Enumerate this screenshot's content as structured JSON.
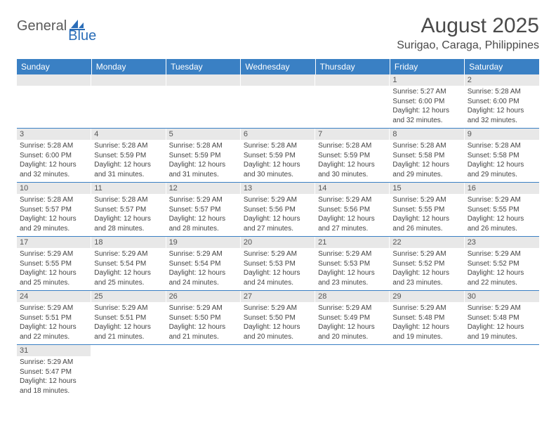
{
  "logo": {
    "word1": "General",
    "word2": "Blue"
  },
  "title": "August 2025",
  "location": "Surigao, Caraga, Philippines",
  "colors": {
    "header_bg": "#3a80c4",
    "header_text": "#ffffff",
    "daynum_bg": "#e8e8e8",
    "border": "#3a80c4",
    "logo_gray": "#5a5a5a",
    "logo_blue": "#2a6db8"
  },
  "weekdays": [
    "Sunday",
    "Monday",
    "Tuesday",
    "Wednesday",
    "Thursday",
    "Friday",
    "Saturday"
  ],
  "weeks": [
    [
      null,
      null,
      null,
      null,
      null,
      {
        "n": "1",
        "sr": "Sunrise: 5:27 AM",
        "ss": "Sunset: 6:00 PM",
        "d1": "Daylight: 12 hours",
        "d2": "and 32 minutes."
      },
      {
        "n": "2",
        "sr": "Sunrise: 5:28 AM",
        "ss": "Sunset: 6:00 PM",
        "d1": "Daylight: 12 hours",
        "d2": "and 32 minutes."
      }
    ],
    [
      {
        "n": "3",
        "sr": "Sunrise: 5:28 AM",
        "ss": "Sunset: 6:00 PM",
        "d1": "Daylight: 12 hours",
        "d2": "and 32 minutes."
      },
      {
        "n": "4",
        "sr": "Sunrise: 5:28 AM",
        "ss": "Sunset: 5:59 PM",
        "d1": "Daylight: 12 hours",
        "d2": "and 31 minutes."
      },
      {
        "n": "5",
        "sr": "Sunrise: 5:28 AM",
        "ss": "Sunset: 5:59 PM",
        "d1": "Daylight: 12 hours",
        "d2": "and 31 minutes."
      },
      {
        "n": "6",
        "sr": "Sunrise: 5:28 AM",
        "ss": "Sunset: 5:59 PM",
        "d1": "Daylight: 12 hours",
        "d2": "and 30 minutes."
      },
      {
        "n": "7",
        "sr": "Sunrise: 5:28 AM",
        "ss": "Sunset: 5:59 PM",
        "d1": "Daylight: 12 hours",
        "d2": "and 30 minutes."
      },
      {
        "n": "8",
        "sr": "Sunrise: 5:28 AM",
        "ss": "Sunset: 5:58 PM",
        "d1": "Daylight: 12 hours",
        "d2": "and 29 minutes."
      },
      {
        "n": "9",
        "sr": "Sunrise: 5:28 AM",
        "ss": "Sunset: 5:58 PM",
        "d1": "Daylight: 12 hours",
        "d2": "and 29 minutes."
      }
    ],
    [
      {
        "n": "10",
        "sr": "Sunrise: 5:28 AM",
        "ss": "Sunset: 5:57 PM",
        "d1": "Daylight: 12 hours",
        "d2": "and 29 minutes."
      },
      {
        "n": "11",
        "sr": "Sunrise: 5:28 AM",
        "ss": "Sunset: 5:57 PM",
        "d1": "Daylight: 12 hours",
        "d2": "and 28 minutes."
      },
      {
        "n": "12",
        "sr": "Sunrise: 5:29 AM",
        "ss": "Sunset: 5:57 PM",
        "d1": "Daylight: 12 hours",
        "d2": "and 28 minutes."
      },
      {
        "n": "13",
        "sr": "Sunrise: 5:29 AM",
        "ss": "Sunset: 5:56 PM",
        "d1": "Daylight: 12 hours",
        "d2": "and 27 minutes."
      },
      {
        "n": "14",
        "sr": "Sunrise: 5:29 AM",
        "ss": "Sunset: 5:56 PM",
        "d1": "Daylight: 12 hours",
        "d2": "and 27 minutes."
      },
      {
        "n": "15",
        "sr": "Sunrise: 5:29 AM",
        "ss": "Sunset: 5:55 PM",
        "d1": "Daylight: 12 hours",
        "d2": "and 26 minutes."
      },
      {
        "n": "16",
        "sr": "Sunrise: 5:29 AM",
        "ss": "Sunset: 5:55 PM",
        "d1": "Daylight: 12 hours",
        "d2": "and 26 minutes."
      }
    ],
    [
      {
        "n": "17",
        "sr": "Sunrise: 5:29 AM",
        "ss": "Sunset: 5:55 PM",
        "d1": "Daylight: 12 hours",
        "d2": "and 25 minutes."
      },
      {
        "n": "18",
        "sr": "Sunrise: 5:29 AM",
        "ss": "Sunset: 5:54 PM",
        "d1": "Daylight: 12 hours",
        "d2": "and 25 minutes."
      },
      {
        "n": "19",
        "sr": "Sunrise: 5:29 AM",
        "ss": "Sunset: 5:54 PM",
        "d1": "Daylight: 12 hours",
        "d2": "and 24 minutes."
      },
      {
        "n": "20",
        "sr": "Sunrise: 5:29 AM",
        "ss": "Sunset: 5:53 PM",
        "d1": "Daylight: 12 hours",
        "d2": "and 24 minutes."
      },
      {
        "n": "21",
        "sr": "Sunrise: 5:29 AM",
        "ss": "Sunset: 5:53 PM",
        "d1": "Daylight: 12 hours",
        "d2": "and 23 minutes."
      },
      {
        "n": "22",
        "sr": "Sunrise: 5:29 AM",
        "ss": "Sunset: 5:52 PM",
        "d1": "Daylight: 12 hours",
        "d2": "and 23 minutes."
      },
      {
        "n": "23",
        "sr": "Sunrise: 5:29 AM",
        "ss": "Sunset: 5:52 PM",
        "d1": "Daylight: 12 hours",
        "d2": "and 22 minutes."
      }
    ],
    [
      {
        "n": "24",
        "sr": "Sunrise: 5:29 AM",
        "ss": "Sunset: 5:51 PM",
        "d1": "Daylight: 12 hours",
        "d2": "and 22 minutes."
      },
      {
        "n": "25",
        "sr": "Sunrise: 5:29 AM",
        "ss": "Sunset: 5:51 PM",
        "d1": "Daylight: 12 hours",
        "d2": "and 21 minutes."
      },
      {
        "n": "26",
        "sr": "Sunrise: 5:29 AM",
        "ss": "Sunset: 5:50 PM",
        "d1": "Daylight: 12 hours",
        "d2": "and 21 minutes."
      },
      {
        "n": "27",
        "sr": "Sunrise: 5:29 AM",
        "ss": "Sunset: 5:50 PM",
        "d1": "Daylight: 12 hours",
        "d2": "and 20 minutes."
      },
      {
        "n": "28",
        "sr": "Sunrise: 5:29 AM",
        "ss": "Sunset: 5:49 PM",
        "d1": "Daylight: 12 hours",
        "d2": "and 20 minutes."
      },
      {
        "n": "29",
        "sr": "Sunrise: 5:29 AM",
        "ss": "Sunset: 5:48 PM",
        "d1": "Daylight: 12 hours",
        "d2": "and 19 minutes."
      },
      {
        "n": "30",
        "sr": "Sunrise: 5:29 AM",
        "ss": "Sunset: 5:48 PM",
        "d1": "Daylight: 12 hours",
        "d2": "and 19 minutes."
      }
    ],
    [
      {
        "n": "31",
        "sr": "Sunrise: 5:29 AM",
        "ss": "Sunset: 5:47 PM",
        "d1": "Daylight: 12 hours",
        "d2": "and 18 minutes."
      },
      null,
      null,
      null,
      null,
      null,
      null
    ]
  ]
}
